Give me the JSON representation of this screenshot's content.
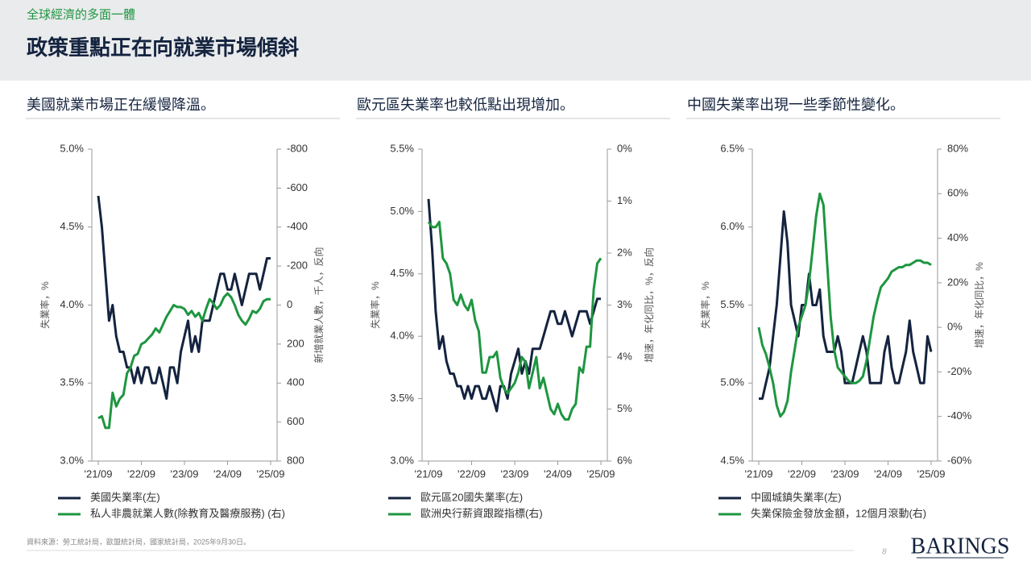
{
  "header": {
    "kicker": "全球經濟的多面一體",
    "title": "政策重點正在向就業市場傾斜"
  },
  "chart_data": [
    {
      "type": "line",
      "title": "美國就業市場正在緩慢降溫。",
      "ylabel": "失業率，%",
      "y2label": "新增就業人數，千人，反向",
      "categories": [
        "'21/09",
        null,
        null,
        null,
        null,
        null,
        null,
        null,
        null,
        null,
        null,
        null,
        "'22/09",
        null,
        null,
        null,
        null,
        null,
        null,
        null,
        null,
        null,
        null,
        null,
        "'23/09",
        null,
        null,
        null,
        null,
        null,
        null,
        null,
        null,
        null,
        null,
        null,
        "'24/09",
        null,
        null,
        null,
        null,
        null,
        null,
        null,
        null,
        null,
        null,
        null,
        "'25/09"
      ],
      "series": [
        {
          "name": "美國失業率(左)",
          "color": "#14233f",
          "values": [
            4.7,
            4.5,
            4.2,
            3.9,
            4.0,
            3.8,
            3.7,
            3.7,
            3.6,
            3.6,
            3.5,
            3.6,
            3.5,
            3.6,
            3.6,
            3.5,
            3.5,
            3.6,
            3.5,
            3.4,
            3.6,
            3.6,
            3.5,
            3.7,
            3.8,
            3.9,
            3.7,
            3.8,
            3.7,
            3.9,
            3.9,
            3.9,
            4.0,
            4.1,
            4.2,
            4.2,
            4.1,
            4.1,
            4.2,
            4.1,
            4.0,
            4.1,
            4.2,
            4.2,
            4.2,
            4.1,
            4.2,
            4.3,
            4.3
          ]
        },
        {
          "name": "私人非農就業人數(除教育及醫療服務) (右)",
          "color": "#1e9640",
          "axis": "y2",
          "values": [
            580,
            570,
            630,
            630,
            450,
            520,
            480,
            460,
            350,
            320,
            260,
            250,
            200,
            190,
            170,
            150,
            120,
            140,
            100,
            60,
            30,
            0,
            10,
            10,
            20,
            50,
            30,
            60,
            40,
            80,
            20,
            -30,
            -10,
            20,
            0,
            -40,
            -60,
            -40,
            0,
            50,
            80,
            100,
            70,
            30,
            40,
            20,
            -20,
            -30,
            -30
          ]
        }
      ],
      "ylim": [
        3,
        5
      ],
      "yticks": [
        {
          "value": 3,
          "label": "3.0%"
        },
        {
          "value": 3.5,
          "label": "3.5%"
        },
        {
          "value": 4,
          "label": "4.0%"
        },
        {
          "value": 4.5,
          "label": "4.5%"
        },
        {
          "value": 5,
          "label": "5.0%"
        }
      ],
      "y2lim": [
        800,
        -800
      ],
      "y2ticks": [
        -800,
        -600,
        -400,
        -200,
        0,
        200,
        400,
        600,
        800
      ]
    },
    {
      "type": "line",
      "title": "歐元區失業率也較低點出現增加。",
      "ylabel": "失業率，%",
      "y2label": "增速，年化同比，%，反向",
      "categories": [
        "'21/09",
        null,
        null,
        null,
        null,
        null,
        null,
        null,
        null,
        null,
        null,
        null,
        "'22/09",
        null,
        null,
        null,
        null,
        null,
        null,
        null,
        null,
        null,
        null,
        null,
        "'23/09",
        null,
        null,
        null,
        null,
        null,
        null,
        null,
        null,
        null,
        null,
        null,
        "'24/09",
        null,
        null,
        null,
        null,
        null,
        null,
        null,
        null,
        null,
        null,
        null,
        "'25/09"
      ],
      "series": [
        {
          "name": "歐元區20國失業率(左)",
          "color": "#14233f",
          "values": [
            5.1,
            4.7,
            4.2,
            3.9,
            4.0,
            3.8,
            3.7,
            3.7,
            3.6,
            3.6,
            3.5,
            3.6,
            3.5,
            3.6,
            3.6,
            3.5,
            3.5,
            3.6,
            3.5,
            3.4,
            3.6,
            3.6,
            3.5,
            3.7,
            3.8,
            3.9,
            3.7,
            3.8,
            3.7,
            3.9,
            3.9,
            3.9,
            4.0,
            4.1,
            4.2,
            4.2,
            4.1,
            4.1,
            4.2,
            4.1,
            4.0,
            4.1,
            4.2,
            4.2,
            4.2,
            4.1,
            4.2,
            4.3,
            4.3
          ]
        },
        {
          "name": "歐洲央行薪資跟蹤指標(右)",
          "color": "#1e9640",
          "axis": "y2",
          "values": [
            1.4,
            1.5,
            1.5,
            1.4,
            2.1,
            2.2,
            2.4,
            2.9,
            3.0,
            2.8,
            3.0,
            3.1,
            2.9,
            3.3,
            3.5,
            4.3,
            4.3,
            4.0,
            4.0,
            3.9,
            4.4,
            4.6,
            4.7,
            4.6,
            4.5,
            4.3,
            4.0,
            4.1,
            4.6,
            4.3,
            4.0,
            4.6,
            4.4,
            4.7,
            5.0,
            5.1,
            4.9,
            5.1,
            5.2,
            5.2,
            5.0,
            4.9,
            4.2,
            4.3,
            3.8,
            3.8,
            2.7,
            2.2,
            2.1
          ]
        }
      ],
      "ylim": [
        3,
        5.5
      ],
      "yticks": [
        {
          "value": 3,
          "label": "3.0%"
        },
        {
          "value": 3.5,
          "label": "3.5%"
        },
        {
          "value": 4,
          "label": "4.0%"
        },
        {
          "value": 4.5,
          "label": "4.5%"
        },
        {
          "value": 5,
          "label": "5.0%"
        },
        {
          "value": 5.5,
          "label": "5.5%"
        }
      ],
      "y2lim": [
        6,
        0
      ],
      "y2ticks": [
        {
          "value": 0,
          "label": "0%"
        },
        {
          "value": 1,
          "label": "1%"
        },
        {
          "value": 2,
          "label": "2%"
        },
        {
          "value": 3,
          "label": "3%"
        },
        {
          "value": 4,
          "label": "4%"
        },
        {
          "value": 5,
          "label": "5%"
        },
        {
          "value": 6,
          "label": "6%"
        }
      ]
    },
    {
      "type": "line",
      "title": "中國失業率出現一些季節性變化。",
      "ylabel": "失業率，%",
      "y2label": "增速，年化同比，%",
      "categories": [
        "'21/09",
        null,
        null,
        null,
        null,
        null,
        null,
        null,
        null,
        null,
        null,
        null,
        "'22/09",
        null,
        null,
        null,
        null,
        null,
        null,
        null,
        null,
        null,
        null,
        null,
        "'23/09",
        null,
        null,
        null,
        null,
        null,
        null,
        null,
        null,
        null,
        null,
        null,
        "'24/09",
        null,
        null,
        null,
        null,
        null,
        null,
        null,
        null,
        null,
        null,
        null,
        "'25/09"
      ],
      "series": [
        {
          "name": "中國城鎮失業率(左)",
          "color": "#14233f",
          "values": [
            4.9,
            4.9,
            5.0,
            5.1,
            5.3,
            5.5,
            5.8,
            6.1,
            5.9,
            5.5,
            5.4,
            5.3,
            5.5,
            5.5,
            5.7,
            5.5,
            5.5,
            5.6,
            5.3,
            5.2,
            5.2,
            5.2,
            5.3,
            5.2,
            5.0,
            5.0,
            5.0,
            5.1,
            5.2,
            5.3,
            5.2,
            5.0,
            5.0,
            5.0,
            5.0,
            5.2,
            5.3,
            5.1,
            5.0,
            5.0,
            5.1,
            5.2,
            5.4,
            5.2,
            5.1,
            5.0,
            5.0,
            5.3,
            5.2
          ]
        },
        {
          "name": "失業保險金發放金額，12個月滾動(右)",
          "color": "#1e9640",
          "axis": "y2",
          "values": [
            0,
            -8,
            -12,
            -18,
            -25,
            -35,
            -40,
            -38,
            -33,
            -20,
            -10,
            0,
            5,
            10,
            20,
            35,
            50,
            60,
            55,
            30,
            5,
            -10,
            -18,
            -20,
            -22,
            -24,
            -25,
            -25,
            -24,
            -22,
            -15,
            -5,
            5,
            12,
            18,
            20,
            22,
            25,
            26,
            27,
            27,
            28,
            28,
            29,
            30,
            30,
            29,
            29,
            28
          ]
        }
      ],
      "ylim": [
        4.5,
        6.5
      ],
      "yticks": [
        {
          "value": 4.5,
          "label": "4.5%"
        },
        {
          "value": 5,
          "label": "5.0%"
        },
        {
          "value": 5.5,
          "label": "5.5%"
        },
        {
          "value": 6,
          "label": "6.0%"
        },
        {
          "value": 6.5,
          "label": "6.5%"
        }
      ],
      "y2lim": [
        -60,
        80
      ],
      "y2ticks": [
        {
          "value": -60,
          "label": "-60%"
        },
        {
          "value": -40,
          "label": "-40%"
        },
        {
          "value": -20,
          "label": "-20%"
        },
        {
          "value": 0,
          "label": "0%"
        },
        {
          "value": 20,
          "label": "20%"
        },
        {
          "value": 40,
          "label": "40%"
        },
        {
          "value": 60,
          "label": "60%"
        },
        {
          "value": 80,
          "label": "80%"
        }
      ]
    }
  ],
  "footer": {
    "source": "資料來源：勞工統計局，歐盟統計局，國家統計局，2025年9月30日。",
    "page": "8",
    "logo": "BARINGS"
  }
}
